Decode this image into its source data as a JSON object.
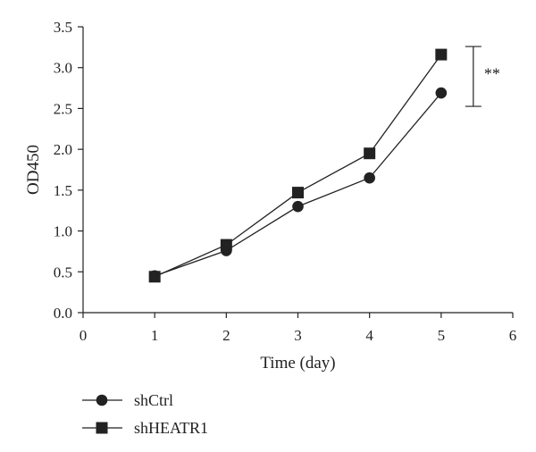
{
  "chart_data": {
    "type": "line",
    "xlabel": "Time (day)",
    "ylabel": "OD450",
    "xlim": [
      0,
      6
    ],
    "ylim": [
      0.0,
      3.5
    ],
    "x_ticks": [
      "0",
      "1",
      "2",
      "3",
      "4",
      "5",
      "6"
    ],
    "y_ticks": [
      "0.0",
      "0.5",
      "1.0",
      "1.5",
      "2.0",
      "2.5",
      "3.0",
      "3.5"
    ],
    "x": [
      1,
      2,
      3,
      4,
      5
    ],
    "series": [
      {
        "name": "shCtrl",
        "marker": "circle",
        "color": "#222222",
        "values": [
          0.45,
          0.76,
          1.3,
          1.65,
          2.69
        ]
      },
      {
        "name": "shHEATR1",
        "marker": "square",
        "color": "#222222",
        "values": [
          0.44,
          0.83,
          1.47,
          1.95,
          3.16
        ]
      }
    ],
    "significance": {
      "label": "**",
      "x": 5,
      "between": [
        "shHEATR1",
        "shCtrl"
      ]
    },
    "grid": false,
    "legend_position": "bottom-left"
  }
}
